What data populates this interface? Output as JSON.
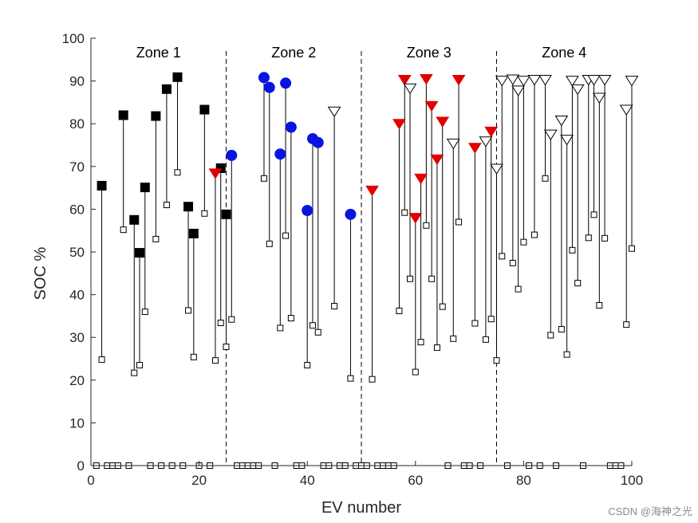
{
  "chart_data": {
    "type": "scatter",
    "xlabel": "EV number",
    "ylabel": "SOC %",
    "xlim": [
      0,
      100
    ],
    "ylim": [
      0,
      100
    ],
    "xticks": [
      0,
      20,
      40,
      60,
      80,
      100
    ],
    "yticks": [
      0,
      10,
      20,
      30,
      40,
      50,
      60,
      70,
      80,
      90,
      100
    ],
    "grid": false,
    "zone_boundaries": [
      25,
      50,
      75
    ],
    "zones": [
      {
        "label": "Zone 1",
        "x": 12.5
      },
      {
        "label": "Zone 2",
        "x": 37.5
      },
      {
        "label": "Zone 3",
        "x": 62.5
      },
      {
        "label": "Zone 4",
        "x": 87.5
      }
    ],
    "zero_soc_evs": [
      1,
      3,
      4,
      5,
      7,
      11,
      13,
      15,
      17,
      20,
      22,
      27,
      28,
      29,
      30,
      31,
      34,
      38,
      39,
      43,
      44,
      46,
      47,
      49,
      50,
      51,
      53,
      54,
      55,
      56,
      66,
      69,
      70,
      72,
      77,
      81,
      83,
      86,
      91,
      96,
      97,
      98
    ],
    "series": [
      {
        "marker": "filled-square",
        "color": "#000000",
        "points": [
          {
            "x": 2,
            "initial": 24.8,
            "final": 65.5
          },
          {
            "x": 6,
            "initial": 55.2,
            "final": 82.0
          },
          {
            "x": 8,
            "initial": 21.7,
            "final": 57.5
          },
          {
            "x": 9,
            "initial": 23.5,
            "final": 49.8
          },
          {
            "x": 10,
            "initial": 36.0,
            "final": 65.1
          },
          {
            "x": 12,
            "initial": 53.0,
            "final": 81.8
          },
          {
            "x": 14,
            "initial": 61.0,
            "final": 88.1
          },
          {
            "x": 16,
            "initial": 68.6,
            "final": 90.9
          },
          {
            "x": 18,
            "initial": 36.3,
            "final": 60.6
          },
          {
            "x": 19,
            "initial": 25.4,
            "final": 54.3
          },
          {
            "x": 21,
            "initial": 59.0,
            "final": 83.3
          },
          {
            "x": 24,
            "initial": 33.4,
            "final": 69.6
          },
          {
            "x": 25,
            "initial": 27.8,
            "final": 58.8
          }
        ]
      },
      {
        "marker": "filled-circle",
        "color": "#0a14e0",
        "points": [
          {
            "x": 26,
            "initial": 34.2,
            "final": 72.6
          },
          {
            "x": 32,
            "initial": 67.2,
            "final": 90.8
          },
          {
            "x": 33,
            "initial": 51.9,
            "final": 88.5
          },
          {
            "x": 35,
            "initial": 32.2,
            "final": 72.9
          },
          {
            "x": 36,
            "initial": 53.8,
            "final": 89.5
          },
          {
            "x": 37,
            "initial": 34.5,
            "final": 79.2
          },
          {
            "x": 40,
            "initial": 23.5,
            "final": 59.7
          },
          {
            "x": 41,
            "initial": 32.8,
            "final": 76.5
          },
          {
            "x": 42,
            "initial": 31.2,
            "final": 75.6
          },
          {
            "x": 48,
            "initial": 20.4,
            "final": 58.8
          }
        ]
      },
      {
        "marker": "filled-triangle-down",
        "color": "#e00000",
        "points": [
          {
            "x": 23,
            "initial": 24.6,
            "final": 68.3
          },
          {
            "x": 52,
            "initial": 20.2,
            "final": 64.3
          },
          {
            "x": 57,
            "initial": 36.2,
            "final": 79.9
          },
          {
            "x": 58,
            "initial": 59.2,
            "final": 90.2
          },
          {
            "x": 60,
            "initial": 21.9,
            "final": 57.9
          },
          {
            "x": 61,
            "initial": 28.9,
            "final": 67.1
          },
          {
            "x": 62,
            "initial": 56.2,
            "final": 90.4
          },
          {
            "x": 63,
            "initial": 43.7,
            "final": 84.1
          },
          {
            "x": 64,
            "initial": 27.6,
            "final": 71.6
          },
          {
            "x": 65,
            "initial": 37.2,
            "final": 80.4
          },
          {
            "x": 68,
            "initial": 57.0,
            "final": 90.2
          },
          {
            "x": 71,
            "initial": 33.3,
            "final": 74.3
          },
          {
            "x": 74,
            "initial": 34.3,
            "final": 78.1
          }
        ]
      },
      {
        "marker": "open-triangle-down",
        "color": "#000000",
        "points": [
          {
            "x": 45,
            "initial": 37.3,
            "final": 82.8
          },
          {
            "x": 59,
            "initial": 43.7,
            "final": 88.2
          },
          {
            "x": 67,
            "initial": 29.7,
            "final": 75.3
          },
          {
            "x": 73,
            "initial": 29.5,
            "final": 75.8
          },
          {
            "x": 75,
            "initial": 24.6,
            "final": 69.4
          },
          {
            "x": 76,
            "initial": 49.0,
            "final": 90.0
          },
          {
            "x": 78,
            "initial": 47.4,
            "final": 90.3
          },
          {
            "x": 79,
            "initial": 41.3,
            "final": 87.7
          },
          {
            "x": 80,
            "initial": 52.3,
            "final": 90.0
          },
          {
            "x": 82,
            "initial": 54.0,
            "final": 90.2
          },
          {
            "x": 84,
            "initial": 67.2,
            "final": 90.2
          },
          {
            "x": 85,
            "initial": 30.5,
            "final": 77.4
          },
          {
            "x": 87,
            "initial": 31.9,
            "final": 80.7
          },
          {
            "x": 88,
            "initial": 26.0,
            "final": 76.2
          },
          {
            "x": 89,
            "initial": 50.4,
            "final": 90.0
          },
          {
            "x": 90,
            "initial": 42.7,
            "final": 88.0
          },
          {
            "x": 92,
            "initial": 53.3,
            "final": 90.2
          },
          {
            "x": 93,
            "initial": 58.7,
            "final": 90.2
          },
          {
            "x": 94,
            "initial": 37.5,
            "final": 86.0
          },
          {
            "x": 95,
            "initial": 53.2,
            "final": 90.2
          },
          {
            "x": 99,
            "initial": 33.0,
            "final": 83.2
          },
          {
            "x": 100,
            "initial": 50.8,
            "final": 90.0
          }
        ]
      }
    ]
  },
  "watermark": "CSDN @海神之光"
}
